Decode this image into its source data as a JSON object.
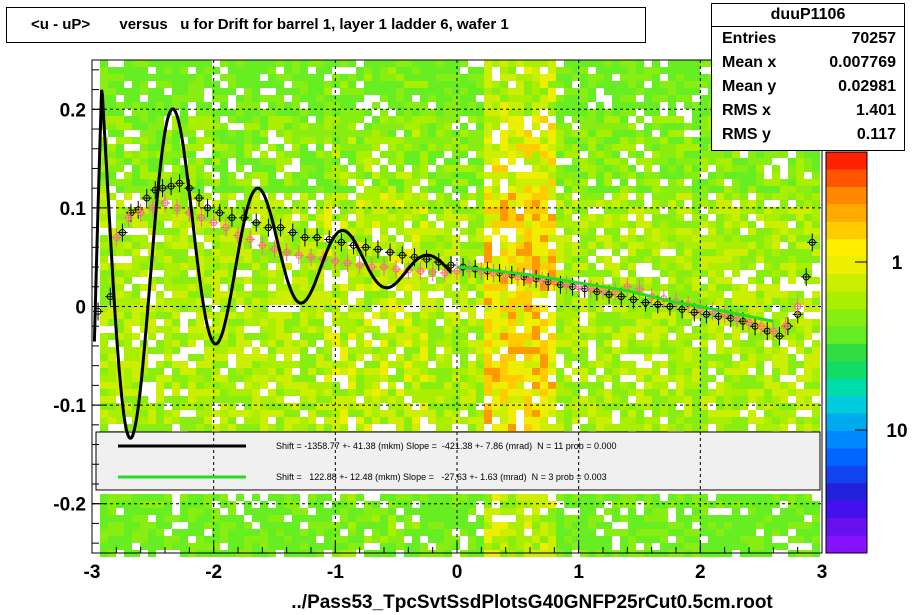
{
  "title": "<u - uP>       versus   u for Drift for barrel 1, layer 1 ladder 6, wafer 1",
  "stats": {
    "name": "duuP1106",
    "rows": [
      {
        "key": "Entries",
        "value": "70257"
      },
      {
        "key": "Mean x",
        "value": "0.007769"
      },
      {
        "key": "Mean y",
        "value": "0.02981"
      },
      {
        "key": "RMS x",
        "value": "1.401"
      },
      {
        "key": "RMS y",
        "value": "0.117"
      }
    ]
  },
  "footer": "../Pass53_TpcSvtSsdPlotsG40GNFP25rCut0.5cm.root",
  "colors": {
    "fit_black": "#000000",
    "fit_green": "#22dd22",
    "grid": "#000000"
  },
  "chart_data": {
    "type": "scatter",
    "xlim": [
      -3,
      3
    ],
    "ylim": [
      -0.25,
      0.25
    ],
    "xticks": [
      "-3",
      "-2",
      "-1",
      "0",
      "1",
      "2",
      "3"
    ],
    "yticks": [
      "-0.2",
      "-0.1",
      "0",
      "0.1",
      "0.2"
    ],
    "zticks": [
      "10",
      "1"
    ],
    "grid": true,
    "legend": {
      "placement": "lower-middle",
      "entries": [
        {
          "color": "#000000",
          "text": "Shift = -1358.77 +- 41.38 (mkm) Slope =  -421.38 +- 7.86 (mrad)  N = 11 prob = 0.000"
        },
        {
          "color": "#22dd22",
          "text": "Shift =   122.88 +- 12.48 (mkm) Slope =   -27.63 +- 1.63 (mrad)  N = 3 prob = 0.003"
        }
      ]
    },
    "series": [
      {
        "marker": "open-circle-black",
        "x": [
          -2.95,
          -2.85,
          -2.75,
          -2.68,
          -2.62,
          -2.55,
          -2.48,
          -2.42,
          -2.35,
          -2.28,
          -2.2,
          -2.12,
          -2.05,
          -1.95,
          -1.85,
          -1.75,
          -1.65,
          -1.55,
          -1.45,
          -1.35,
          -1.25,
          -1.15,
          -1.05,
          -0.95,
          -0.85,
          -0.75,
          -0.65,
          -0.55,
          -0.45,
          -0.35,
          -0.25,
          -0.15,
          -0.05,
          0.05,
          0.15,
          0.25,
          0.35,
          0.45,
          0.55,
          0.65,
          0.75,
          0.85,
          0.95,
          1.05,
          1.15,
          1.25,
          1.35,
          1.45,
          1.55,
          1.65,
          1.75,
          1.85,
          1.95,
          2.05,
          2.15,
          2.25,
          2.35,
          2.45,
          2.55,
          2.65,
          2.72,
          2.8,
          2.87,
          2.92
        ],
        "y": [
          -0.005,
          0.01,
          0.075,
          0.095,
          0.098,
          0.11,
          0.118,
          0.12,
          0.122,
          0.125,
          0.12,
          0.11,
          0.1,
          0.095,
          0.09,
          0.09,
          0.085,
          0.08,
          0.08,
          0.075,
          0.07,
          0.07,
          0.068,
          0.065,
          0.062,
          0.06,
          0.058,
          0.055,
          0.052,
          0.05,
          0.048,
          0.045,
          0.042,
          0.04,
          0.038,
          0.036,
          0.034,
          0.032,
          0.03,
          0.028,
          0.025,
          0.022,
          0.02,
          0.018,
          0.015,
          0.012,
          0.01,
          0.007,
          0.004,
          0.002,
          0.0,
          -0.003,
          -0.006,
          -0.008,
          -0.01,
          -0.012,
          -0.015,
          -0.02,
          -0.025,
          -0.03,
          -0.02,
          -0.008,
          0.03,
          0.065
        ]
      },
      {
        "marker": "open-circle-pink",
        "x": [
          -2.8,
          -2.7,
          -2.6,
          -2.5,
          -2.4,
          -2.3,
          -2.2,
          -2.1,
          -2.0,
          -1.9,
          -1.8,
          -1.7,
          -1.6,
          -1.5,
          -1.4,
          -1.3,
          -1.2,
          -1.1,
          -1.0,
          -0.9,
          -0.8,
          -0.7,
          -0.6,
          -0.5,
          -0.4,
          -0.3,
          -0.2,
          -0.1,
          0.0,
          0.1,
          0.2,
          0.3,
          0.4,
          0.5,
          0.6,
          0.7,
          0.8,
          0.9,
          1.0,
          1.1,
          1.2,
          1.3,
          1.4,
          1.5,
          1.6,
          1.7,
          1.8,
          1.9,
          2.0,
          2.1,
          2.2,
          2.3,
          2.4,
          2.5,
          2.6,
          2.7,
          2.8
        ],
        "y": [
          0.07,
          0.09,
          0.095,
          0.1,
          0.105,
          0.1,
          0.095,
          0.09,
          0.085,
          0.08,
          0.072,
          0.068,
          0.062,
          0.058,
          0.055,
          0.052,
          0.05,
          0.048,
          0.046,
          0.044,
          0.042,
          0.04,
          0.04,
          0.038,
          0.037,
          0.036,
          0.035,
          0.034,
          0.036,
          0.038,
          0.036,
          0.034,
          0.032,
          0.03,
          0.028,
          0.026,
          0.025,
          0.022,
          0.02,
          0.018,
          0.016,
          0.015,
          0.02,
          0.018,
          0.01,
          0.008,
          0.005,
          0.002,
          -0.002,
          -0.005,
          -0.008,
          -0.012,
          -0.016,
          -0.02,
          -0.025,
          -0.02,
          0.0
        ]
      },
      {
        "marker": "dense-green",
        "x": [
          0.0,
          0.2,
          0.4,
          0.6,
          0.8,
          1.0,
          1.2,
          1.4,
          1.6,
          1.8,
          2.0,
          2.2,
          2.4,
          2.6
        ],
        "y": [
          0.04,
          0.038,
          0.035,
          0.032,
          0.028,
          0.024,
          0.02,
          0.016,
          0.01,
          0.004,
          0.0,
          -0.005,
          -0.01,
          -0.015
        ]
      }
    ]
  }
}
